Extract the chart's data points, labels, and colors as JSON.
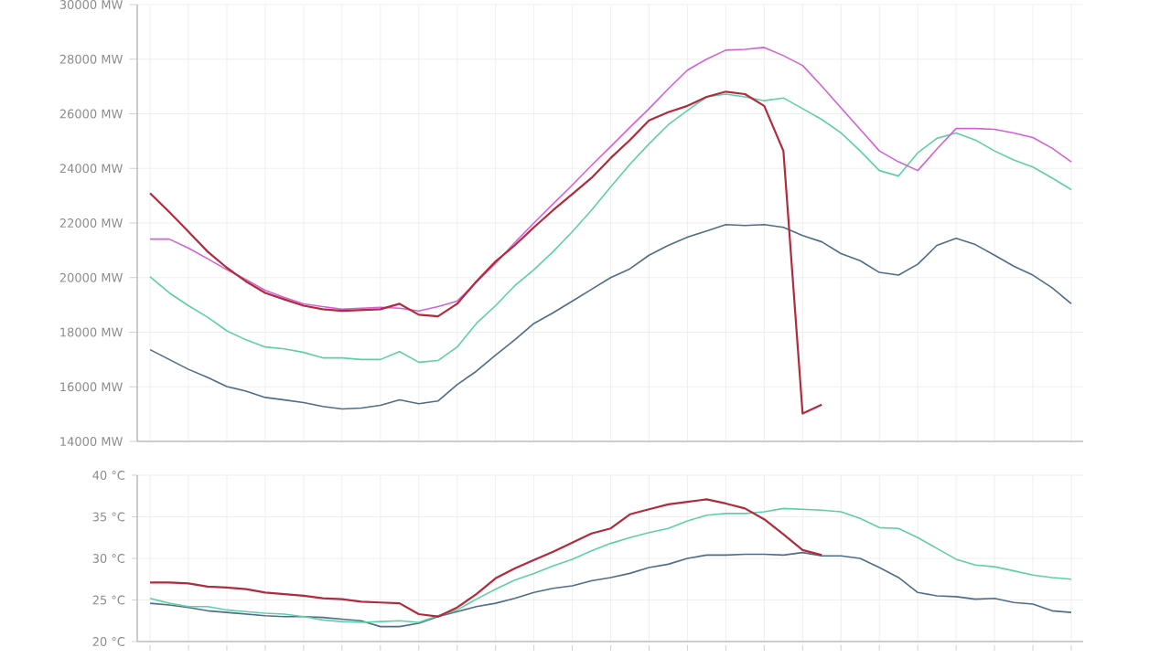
{
  "chart_data": [
    {
      "type": "line",
      "categories": [
        null,
        null,
        null,
        null,
        null,
        null,
        null,
        null,
        null,
        null,
        null,
        null,
        null,
        null,
        null,
        null,
        null,
        null,
        null,
        null,
        null,
        null,
        null,
        null,
        null,
        null,
        null,
        null,
        null,
        null,
        null,
        null,
        null,
        null,
        null,
        null,
        null,
        null,
        null,
        null,
        null,
        null,
        null,
        null,
        null,
        null,
        null,
        null,
        null
      ],
      "ylim": [
        14000,
        30000
      ],
      "yticks": [
        {
          "value": 14000,
          "label": "14000 MW"
        },
        {
          "value": 16000,
          "label": "16000 MW"
        },
        {
          "value": 18000,
          "label": "18000 MW"
        },
        {
          "value": 20000,
          "label": "20000 MW"
        },
        {
          "value": 22000,
          "label": "22000 MW"
        },
        {
          "value": 24000,
          "label": "24000 MW"
        },
        {
          "value": 26000,
          "label": "26000 MW"
        },
        {
          "value": 28000,
          "label": "28000 MW"
        },
        {
          "value": 30000,
          "label": "30000 MW"
        }
      ],
      "grid": true,
      "tick_labels": "y",
      "series": [
        {
          "color": "#4f6d8a",
          "values": [
            17360,
            17000,
            16640,
            16340,
            16010,
            15840,
            15610,
            15520,
            15420,
            15280,
            15190,
            15220,
            15320,
            15520,
            15380,
            15480,
            16080,
            16570,
            17160,
            17720,
            18320,
            18710,
            19140,
            19570,
            20000,
            20320,
            20820,
            21180,
            21480,
            21710,
            21940,
            21910,
            21940,
            21840,
            21540,
            21310,
            20880,
            20620,
            20190,
            20090,
            20490,
            21180,
            21440,
            21210,
            20820,
            20420,
            20090,
            19630,
            19040
          ]
        },
        {
          "color": "#5dd0a5",
          "values": [
            20030,
            19440,
            18970,
            18550,
            18050,
            17720,
            17460,
            17390,
            17260,
            17060,
            17060,
            17000,
            17000,
            17290,
            16900,
            16960,
            17460,
            18320,
            18970,
            19700,
            20290,
            20950,
            21680,
            22470,
            23320,
            24150,
            24900,
            25600,
            26120,
            26620,
            26720,
            26620,
            26480,
            26580,
            26190,
            25790,
            25300,
            24640,
            23920,
            23720,
            24570,
            25100,
            25300,
            25040,
            24640,
            24310,
            24050,
            23650,
            23220
          ]
        },
        {
          "color": "#d460d8",
          "values": [
            21410,
            21410,
            21080,
            20690,
            20290,
            19930,
            19530,
            19270,
            19040,
            18940,
            18840,
            18880,
            18910,
            18880,
            18780,
            18940,
            19140,
            19830,
            20520,
            21280,
            22000,
            22700,
            23390,
            24110,
            24800,
            25500,
            26190,
            26910,
            27600,
            28000,
            28330,
            28360,
            28430,
            28130,
            27770,
            27010,
            26220,
            25430,
            24640,
            24240,
            23920,
            24710,
            25460,
            25460,
            25430,
            25300,
            25130,
            24740,
            24240
          ]
        },
        {
          "color": "#b22a3b",
          "values": [
            23090,
            22400,
            21680,
            20950,
            20360,
            19860,
            19440,
            19200,
            18970,
            18840,
            18780,
            18810,
            18840,
            19040,
            18640,
            18580,
            19040,
            19860,
            20590,
            21180,
            21840,
            22470,
            23060,
            23650,
            24380,
            25040,
            25760,
            26060,
            26290,
            26620,
            26810,
            26720,
            26290,
            24640,
            15020,
            15350,
            null,
            null,
            null,
            null,
            null,
            null,
            null,
            null,
            null,
            null,
            null,
            null,
            null
          ]
        }
      ]
    },
    {
      "type": "line",
      "categories": [
        null,
        null,
        null,
        null,
        null,
        null,
        null,
        null,
        null,
        null,
        null,
        null,
        null,
        null,
        null,
        null,
        null,
        null,
        null,
        null,
        null,
        null,
        null,
        null,
        null,
        null,
        null,
        null,
        null,
        null,
        null,
        null,
        null,
        null,
        null,
        null,
        null,
        null,
        null,
        null,
        null,
        null,
        null,
        null,
        null,
        null,
        null,
        null,
        null
      ],
      "ylim": [
        20,
        40
      ],
      "yticks": [
        {
          "value": 20,
          "label": "20 °C"
        },
        {
          "value": 25,
          "label": "25 °C"
        },
        {
          "value": 30,
          "label": "30 °C"
        },
        {
          "value": 35,
          "label": "35 °C"
        },
        {
          "value": 40,
          "label": "40 °C"
        }
      ],
      "grid": true,
      "tick_labels": "y",
      "series": [
        {
          "color": "#4f6d8a",
          "values": [
            24.6,
            24.4,
            24.1,
            23.7,
            23.5,
            23.3,
            23.1,
            23.0,
            23.0,
            22.9,
            22.7,
            22.5,
            21.8,
            21.8,
            22.2,
            23.0,
            23.6,
            24.2,
            24.6,
            25.2,
            25.9,
            26.4,
            26.7,
            27.3,
            27.7,
            28.2,
            28.9,
            29.3,
            30.0,
            30.4,
            30.4,
            30.5,
            30.5,
            30.4,
            30.7,
            30.3,
            30.3,
            30.0,
            28.9,
            27.7,
            25.9,
            25.5,
            25.4,
            25.1,
            25.2,
            24.7,
            24.5,
            23.7,
            23.5
          ]
        },
        {
          "color": "#5dd0a5",
          "values": [
            25.2,
            24.6,
            24.2,
            24.2,
            23.8,
            23.6,
            23.4,
            23.3,
            23.0,
            22.6,
            22.4,
            22.3,
            22.4,
            22.5,
            22.3,
            23.1,
            23.8,
            25.1,
            26.3,
            27.4,
            28.2,
            29.1,
            29.9,
            30.9,
            31.8,
            32.5,
            33.1,
            33.6,
            34.5,
            35.2,
            35.4,
            35.4,
            35.6,
            36.0,
            35.9,
            35.8,
            35.6,
            34.8,
            33.7,
            33.6,
            32.5,
            31.2,
            29.9,
            29.2,
            29.0,
            28.5,
            28.0,
            27.7,
            27.5
          ]
        },
        {
          "color": "#b22a3b",
          "values": [
            27.1,
            27.1,
            27.0,
            26.6,
            26.5,
            26.3,
            25.9,
            25.7,
            25.5,
            25.2,
            25.1,
            24.8,
            24.7,
            24.6,
            23.3,
            23.0,
            24.1,
            25.7,
            27.6,
            28.8,
            29.8,
            30.8,
            31.9,
            33.0,
            33.6,
            35.3,
            35.9,
            36.5,
            36.8,
            37.1,
            36.6,
            36.0,
            34.7,
            32.9,
            31.0,
            30.4,
            null,
            null,
            null,
            null,
            null,
            null,
            null,
            null,
            null,
            null,
            null,
            null,
            null
          ]
        }
      ]
    }
  ]
}
